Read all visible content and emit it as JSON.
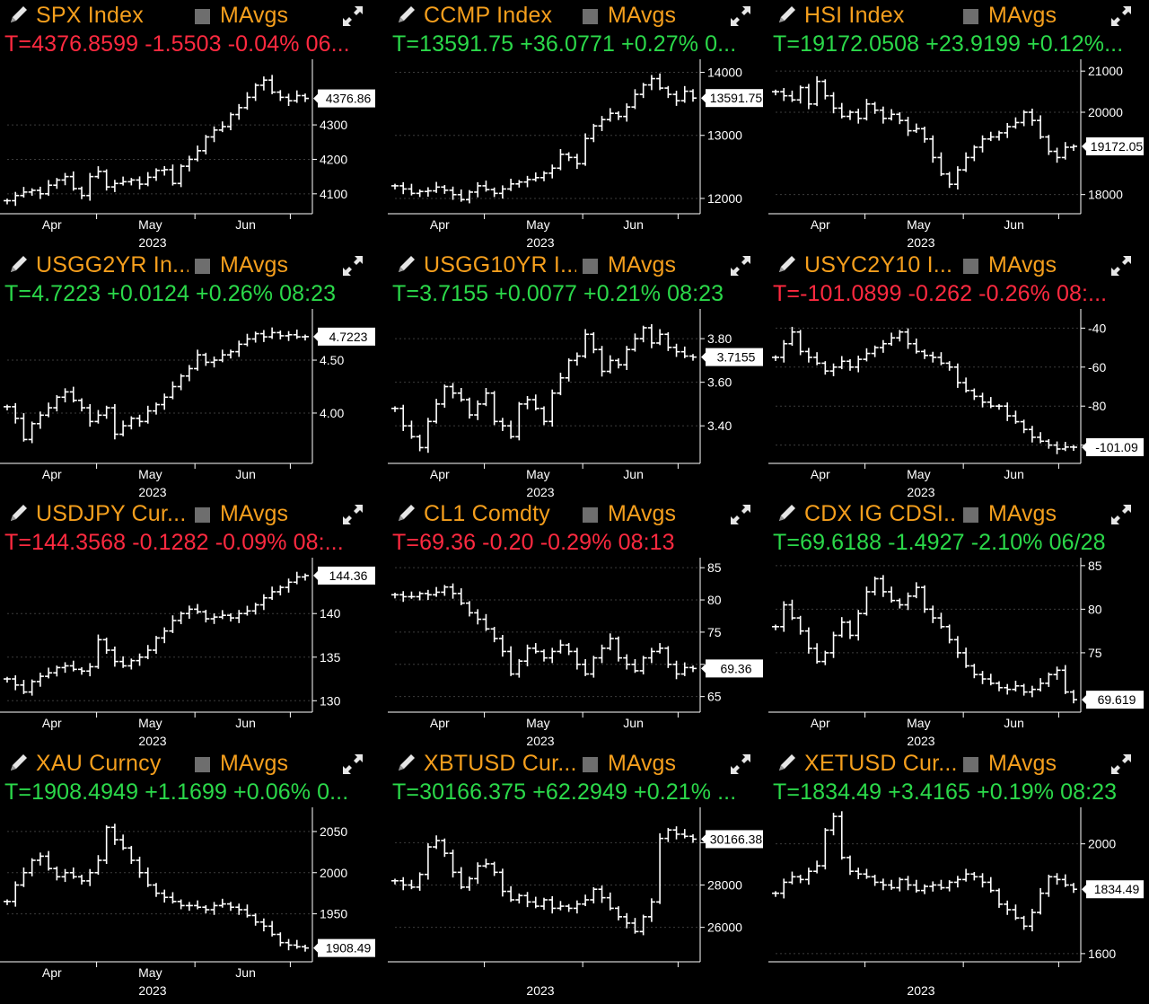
{
  "colors": {
    "background": "#000000",
    "title": "#f59f1d",
    "up": "#2bd94a",
    "down": "#ff2a40",
    "series": "#ffffff",
    "toggle": "#6e6e6e"
  },
  "icons": {
    "edit": "pencil-icon",
    "expand": "expand-arrows-icon"
  },
  "panels": [
    {
      "title": "SPX Index",
      "ma_label": "MAvgs",
      "quote": "T=4376.8599 -1.5503 -0.04% 06...",
      "direction": "down"
    },
    {
      "title": "CCMP Index",
      "ma_label": "MAvgs",
      "quote": "T=13591.75 +36.0771 +0.27% 0...",
      "direction": "up"
    },
    {
      "title": "HSI Index",
      "ma_label": "MAvgs",
      "quote": "T=19172.0508 +23.9199 +0.12%...",
      "direction": "up"
    },
    {
      "title": "USGG2YR In...",
      "ma_label": "MAvgs",
      "quote": "T=4.7223 +0.0124 +0.26% 08:23",
      "direction": "up"
    },
    {
      "title": "USGG10YR I...",
      "ma_label": "MAvgs",
      "quote": "T=3.7155 +0.0077 +0.21% 08:23",
      "direction": "up"
    },
    {
      "title": "USYC2Y10 I...",
      "ma_label": "MAvgs",
      "quote": "T=-101.0899 -0.262 -0.26% 08:...",
      "direction": "down"
    },
    {
      "title": "USDJPY Cur...",
      "ma_label": "MAvgs",
      "quote": "T=144.3568 -0.1282 -0.09% 08:...",
      "direction": "down"
    },
    {
      "title": "CL1 Comdty",
      "ma_label": "MAvgs",
      "quote": "T=69.36 -0.20 -0.29% 08:13",
      "direction": "down"
    },
    {
      "title": "CDX IG CDSI...",
      "ma_label": "MAvgs",
      "quote": "T=69.6188 -1.4927 -2.10% 06/28",
      "direction": "up"
    },
    {
      "title": "XAU Curncy",
      "ma_label": "MAvgs",
      "quote": "T=1908.4949 +1.1699 +0.06% 0...",
      "direction": "up"
    },
    {
      "title": "XBTUSD Cur...",
      "ma_label": "MAvgs",
      "quote": "T=30166.375 +62.2949 +0.21% ...",
      "direction": "up"
    },
    {
      "title": "XETUSD Cur...",
      "ma_label": "MAvgs",
      "quote": "T=1834.49 +3.4165 +0.19% 08:23",
      "direction": "up"
    }
  ],
  "chart_data": [
    {
      "type": "line",
      "name": "SPX Index",
      "x_ticks": [
        "Apr",
        "May",
        "Jun"
      ],
      "x_year": "2023",
      "ylim": [
        4050,
        4480
      ],
      "y_ticks": [
        "4100",
        "4200",
        "4300"
      ],
      "last_label": "4376.86",
      "last_value": 4376.86,
      "values": [
        4080,
        4095,
        4105,
        4110,
        4100,
        4125,
        4140,
        4150,
        4115,
        4095,
        4150,
        4165,
        4120,
        4130,
        4135,
        4140,
        4128,
        4148,
        4168,
        4170,
        4130,
        4180,
        4200,
        4225,
        4265,
        4285,
        4295,
        4330,
        4350,
        4380,
        4415,
        4430,
        4395,
        4380,
        4370,
        4385,
        4376.86
      ]
    },
    {
      "type": "line",
      "name": "CCMP Index",
      "x_ticks": [
        "Apr",
        "May",
        "Jun"
      ],
      "x_year": "2023",
      "ylim": [
        11800,
        14150
      ],
      "y_ticks": [
        "12000",
        "13000",
        "14000"
      ],
      "last_label": "13591.75",
      "last_value": 13591.75,
      "values": [
        12200,
        12150,
        12080,
        12110,
        12120,
        12180,
        12130,
        12060,
        11980,
        12100,
        12200,
        12140,
        12080,
        12150,
        12230,
        12260,
        12300,
        12330,
        12400,
        12480,
        12700,
        12650,
        12550,
        12950,
        13150,
        13250,
        13350,
        13300,
        13450,
        13650,
        13800,
        13900,
        13750,
        13650,
        13550,
        13700,
        13591.75
      ]
    },
    {
      "type": "line",
      "name": "HSI Index",
      "x_ticks": [
        "Apr",
        "May",
        "Jun"
      ],
      "x_year": "2023",
      "ylim": [
        17600,
        21200
      ],
      "y_ticks": [
        "18000",
        "20000",
        "21000"
      ],
      "last_label": "19172.05",
      "last_value": 19172.05,
      "values": [
        20500,
        20400,
        20300,
        20600,
        20200,
        20750,
        20400,
        20100,
        19900,
        20000,
        19850,
        20200,
        20050,
        19850,
        19950,
        19800,
        19550,
        19600,
        19350,
        18900,
        18500,
        18250,
        18600,
        18900,
        19150,
        19350,
        19400,
        19500,
        19650,
        19750,
        20000,
        19800,
        19400,
        19050,
        18900,
        19150,
        19172.05
      ]
    },
    {
      "type": "line",
      "name": "USGG2YR Index",
      "x_ticks": [
        "Apr",
        "May",
        "Jun"
      ],
      "x_year": "2023",
      "ylim": [
        3.55,
        4.95
      ],
      "y_ticks": [
        "4.00",
        "4.50"
      ],
      "last_label": "4.7223",
      "last_value": 4.7223,
      "values": [
        4.06,
        3.95,
        3.75,
        3.9,
        3.98,
        4.05,
        4.15,
        4.2,
        4.12,
        4.05,
        3.92,
        3.98,
        4.05,
        3.8,
        3.88,
        3.95,
        3.92,
        4.02,
        4.08,
        4.15,
        4.25,
        4.35,
        4.42,
        4.55,
        4.48,
        4.5,
        4.55,
        4.58,
        4.65,
        4.7,
        4.75,
        4.72,
        4.76,
        4.73,
        4.74,
        4.72,
        4.7223
      ]
    },
    {
      "type": "line",
      "name": "USGG10YR Index",
      "x_ticks": [
        "Apr",
        "May",
        "Jun"
      ],
      "x_year": "2023",
      "ylim": [
        3.24,
        3.92
      ],
      "y_ticks": [
        "3.40",
        "3.60",
        "3.80"
      ],
      "last_label": "3.7155",
      "last_value": 3.7155,
      "values": [
        3.48,
        3.4,
        3.35,
        3.3,
        3.42,
        3.5,
        3.58,
        3.55,
        3.52,
        3.45,
        3.5,
        3.55,
        3.42,
        3.4,
        3.35,
        3.5,
        3.52,
        3.48,
        3.42,
        3.55,
        3.62,
        3.7,
        3.72,
        3.82,
        3.75,
        3.65,
        3.7,
        3.68,
        3.75,
        3.8,
        3.85,
        3.78,
        3.82,
        3.76,
        3.74,
        3.72,
        3.7155
      ]
    },
    {
      "type": "line",
      "name": "USYC2Y10 Index",
      "x_ticks": [
        "Apr",
        "May",
        "Jun"
      ],
      "x_year": "2023",
      "ylim": [
        -108,
        -32
      ],
      "y_ticks": [
        "-40",
        "-60",
        "-80",
        "-100"
      ],
      "last_label": "-101.09",
      "last_value": -101.09,
      "values": [
        -55,
        -48,
        -42,
        -52,
        -55,
        -58,
        -62,
        -60,
        -57,
        -60,
        -56,
        -53,
        -50,
        -48,
        -45,
        -42,
        -48,
        -52,
        -54,
        -55,
        -58,
        -60,
        -68,
        -72,
        -75,
        -78,
        -80,
        -80,
        -85,
        -88,
        -92,
        -96,
        -98,
        -100,
        -102,
        -101,
        -101.09
      ]
    },
    {
      "type": "line",
      "name": "USDJPY Curncy",
      "x_ticks": [
        "Apr",
        "May",
        "Jun"
      ],
      "x_year": "2023",
      "ylim": [
        129,
        146
      ],
      "y_ticks": [
        "130",
        "135",
        "140"
      ],
      "last_label": "144.36",
      "last_value": 144.36,
      "values": [
        132.5,
        131.8,
        131.0,
        132.2,
        132.8,
        133.2,
        133.8,
        134.0,
        133.6,
        133.4,
        133.9,
        137.0,
        135.8,
        134.5,
        134.0,
        134.6,
        135.0,
        135.8,
        137.2,
        138.0,
        139.2,
        140.0,
        140.5,
        140.2,
        139.4,
        139.6,
        139.8,
        139.5,
        140.0,
        140.3,
        141.0,
        141.8,
        142.5,
        143.0,
        143.6,
        144.2,
        144.36
      ]
    },
    {
      "type": "line",
      "name": "CL1 Comdty",
      "x_ticks": [
        "Apr",
        "May",
        "Jun"
      ],
      "x_year": "2023",
      "ylim": [
        63,
        86
      ],
      "y_ticks": [
        "65",
        "70",
        "75",
        "80",
        "85"
      ],
      "last_label": "69.36",
      "last_value": 69.36,
      "values": [
        80.8,
        80.5,
        80.5,
        81.0,
        80.8,
        81.2,
        82.0,
        81.0,
        79.5,
        78.0,
        77.0,
        75.5,
        74.0,
        72.0,
        68.5,
        70.5,
        72.5,
        72.0,
        71.0,
        72.0,
        73.0,
        72.0,
        70.0,
        68.5,
        71.0,
        72.5,
        74.0,
        71.0,
        70.0,
        69.0,
        71.0,
        72.0,
        72.5,
        70.0,
        68.5,
        69.5,
        69.36
      ]
    },
    {
      "type": "line",
      "name": "CDX IG CDSI",
      "x_ticks": [
        "Apr",
        "May",
        "Jun"
      ],
      "x_year": "2023",
      "ylim": [
        68.5,
        85.5
      ],
      "y_ticks": [
        "75",
        "80",
        "85"
      ],
      "last_label": "69.619",
      "last_value": 69.619,
      "values": [
        78.0,
        80.5,
        79.0,
        77.5,
        75.5,
        74.0,
        75.0,
        77.0,
        78.5,
        77.0,
        79.5,
        82.0,
        83.5,
        82.0,
        81.0,
        80.5,
        81.5,
        82.5,
        80.0,
        79.0,
        78.0,
        76.5,
        75.0,
        73.5,
        72.5,
        72.0,
        71.5,
        71.0,
        70.8,
        71.2,
        70.5,
        70.8,
        71.5,
        72.5,
        73.0,
        70.5,
        69.619
      ]
    },
    {
      "type": "line",
      "name": "XAU Curncy",
      "x_ticks": [
        "Apr",
        "May",
        "Jun"
      ],
      "x_year": "2023",
      "ylim": [
        1895,
        2075
      ],
      "y_ticks": [
        "1950",
        "2000",
        "2050"
      ],
      "last_label": "1908.49",
      "last_value": 1908.49,
      "values": [
        1965,
        1985,
        2000,
        2015,
        2020,
        2005,
        1995,
        2000,
        1995,
        1990,
        2000,
        2015,
        2055,
        2040,
        2030,
        2015,
        2000,
        1985,
        1975,
        1970,
        1965,
        1960,
        1960,
        1958,
        1955,
        1960,
        1962,
        1958,
        1955,
        1948,
        1940,
        1935,
        1925,
        1915,
        1912,
        1910,
        1908.49
      ]
    },
    {
      "type": "line",
      "name": "XBTUSD Curncy",
      "x_ticks": [],
      "x_year": "2023",
      "ylim": [
        24500,
        31500
      ],
      "y_ticks": [
        "26000",
        "28000",
        "30000"
      ],
      "last_label": "30166.38",
      "last_value": 30166.38,
      "values": [
        28200,
        28000,
        27900,
        28500,
        29800,
        30100,
        29500,
        28600,
        27900,
        28300,
        28900,
        29000,
        28600,
        27700,
        27300,
        27500,
        27200,
        27000,
        27300,
        26900,
        27000,
        26900,
        27100,
        27300,
        27800,
        27400,
        26900,
        26500,
        26200,
        25800,
        26500,
        27200,
        30200,
        30600,
        30400,
        30300,
        30166.38
      ]
    },
    {
      "type": "line",
      "name": "XETUSD Curncy",
      "x_ticks": [],
      "x_year": "2023",
      "ylim": [
        1580,
        2120
      ],
      "y_ticks": [
        "1600",
        "2000"
      ],
      "last_label": "1834.49",
      "last_value": 1834.49,
      "values": [
        1820,
        1860,
        1880,
        1870,
        1900,
        1920,
        2050,
        2100,
        1950,
        1900,
        1890,
        1880,
        1860,
        1850,
        1840,
        1870,
        1850,
        1830,
        1845,
        1850,
        1840,
        1860,
        1870,
        1890,
        1880,
        1860,
        1830,
        1780,
        1760,
        1730,
        1700,
        1750,
        1820,
        1880,
        1870,
        1850,
        1834.49
      ]
    }
  ]
}
